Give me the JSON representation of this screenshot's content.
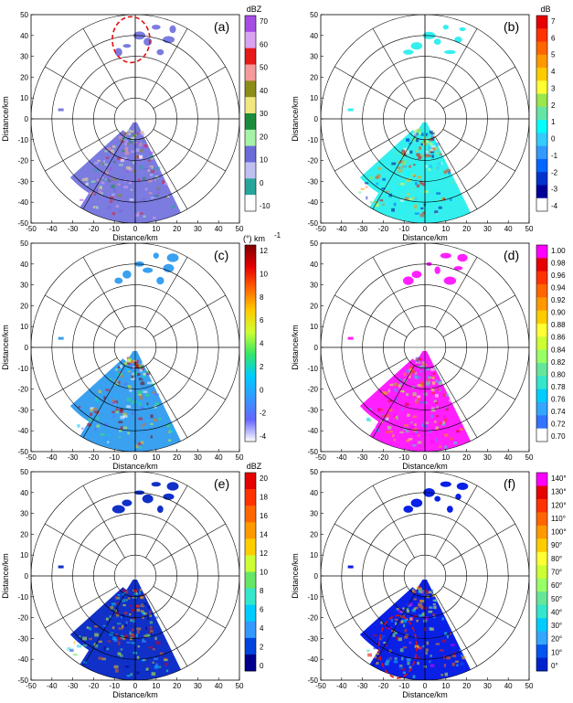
{
  "figure": {
    "background": "#ffffff",
    "grid_color": "#000000"
  },
  "chart_data": [
    {
      "panel": "(a)",
      "type": "heatmap",
      "xlabel": "Distance/km",
      "ylabel": "Distance/km",
      "xlim": [
        -50,
        50
      ],
      "ylim": [
        -50,
        50
      ],
      "xticks": [
        "-50",
        "-40",
        "-30",
        "-20",
        "-10",
        "0",
        "10",
        "20",
        "30",
        "40",
        "50"
      ],
      "yticks": [
        "50",
        "40",
        "30",
        "20",
        "10",
        "0",
        "-10",
        "-20",
        "-30",
        "-40",
        "-50"
      ],
      "range_rings_km": [
        10,
        20,
        30,
        40,
        50
      ],
      "radial_line_spacing_deg": 30,
      "colorbar": {
        "title": "dBZ",
        "ticks": [
          "70",
          "60",
          "50",
          "40",
          "30",
          "20",
          "10",
          "0",
          "-10"
        ],
        "colors": [
          "#a64de6",
          "#d9a3f2",
          "#e61a1a",
          "#f59a9a",
          "#8c8c19",
          "#f2e680",
          "#1a8c3b",
          "#a6f2a6",
          "#6b6bd9",
          "#bfbff2",
          "#26a69a",
          "#ffffff"
        ]
      },
      "main_color": "#7b7be0",
      "annotation": "red dashed ellipse"
    },
    {
      "panel": "(b)",
      "type": "heatmap",
      "xlabel": "Distance/km",
      "ylabel": "",
      "xlim": [
        -50,
        50
      ],
      "ylim": [
        -50,
        50
      ],
      "xticks": [
        "-50",
        "-40",
        "-30",
        "-20",
        "-10",
        "0",
        "10",
        "20",
        "30",
        "40",
        "50"
      ],
      "yticks": [
        "50",
        "40",
        "30",
        "20",
        "10",
        "0",
        "-10",
        "-20",
        "-30",
        "-40",
        "-50"
      ],
      "range_rings_km": [
        10,
        20,
        30,
        40,
        50
      ],
      "radial_line_spacing_deg": 30,
      "colorbar": {
        "title": "dB",
        "ticks": [
          "7",
          "6",
          "5",
          "4",
          "3",
          "2",
          "1",
          "0",
          "-1",
          "-2",
          "-3",
          "-4"
        ],
        "colors": [
          "#e60000",
          "#ff3300",
          "#ff6600",
          "#ff9900",
          "#ffcc00",
          "#ffff33",
          "#99e64d",
          "#66e6a6",
          "#00ffff",
          "#33ccff",
          "#3399ff",
          "#0066ff",
          "#0033cc",
          "#000099",
          "#ffffff"
        ]
      },
      "main_color": "#33f0ee"
    },
    {
      "panel": "(c)",
      "type": "heatmap",
      "xlabel": "Distance/km",
      "ylabel": "Distance/km",
      "xlim": [
        -50,
        50
      ],
      "ylim": [
        -50,
        50
      ],
      "xticks": [
        "-50",
        "-40",
        "-30",
        "-20",
        "-10",
        "0",
        "10",
        "20",
        "30",
        "40",
        "50"
      ],
      "yticks": [
        "50",
        "40",
        "30",
        "20",
        "10",
        "0",
        "-10",
        "-20",
        "-30",
        "-40",
        "-50"
      ],
      "range_rings_km": [
        10,
        20,
        30,
        40,
        50
      ],
      "radial_line_spacing_deg": 30,
      "colorbar": {
        "title": "(°) km",
        "title_sup": "-1",
        "ticks": [
          "12",
          "10",
          "8",
          "6",
          "4",
          "2",
          "0",
          "-2",
          "-4"
        ],
        "gradient": [
          "#800000",
          "#e60000",
          "#ff6600",
          "#ffcc00",
          "#ccff33",
          "#33e666",
          "#00ccff",
          "#3399ff",
          "#6666ff",
          "#ffffff"
        ]
      },
      "main_color": "#3aa0f0"
    },
    {
      "panel": "(d)",
      "type": "heatmap",
      "xlabel": "Distance/km",
      "ylabel": "",
      "xlim": [
        -50,
        50
      ],
      "ylim": [
        -50,
        50
      ],
      "xticks": [
        "-50",
        "-40",
        "-30",
        "-20",
        "-10",
        "0",
        "10",
        "20",
        "30",
        "40",
        "50"
      ],
      "yticks": [
        "50",
        "40",
        "30",
        "20",
        "10",
        "0",
        "-10",
        "-20",
        "-30",
        "-40",
        "-50"
      ],
      "range_rings_km": [
        10,
        20,
        30,
        40,
        50
      ],
      "radial_line_spacing_deg": 30,
      "colorbar": {
        "title": "",
        "ticks": [
          "1.00",
          "0.98",
          "0.96",
          "0.94",
          "0.92",
          "0.90",
          "0.88",
          "0.86",
          "0.84",
          "0.82",
          "0.80",
          "0.78",
          "0.76",
          "0.74",
          "0.72",
          "0.70"
        ],
        "colors": [
          "#ff00ff",
          "#e60000",
          "#ff3300",
          "#ff6600",
          "#ff9900",
          "#ffcc00",
          "#ffff33",
          "#ccff33",
          "#99ff66",
          "#66e699",
          "#33e6cc",
          "#00ccff",
          "#33a6ff",
          "#3373ff",
          "#ffffff"
        ]
      },
      "main_color": "#ff1fff"
    },
    {
      "panel": "(e)",
      "type": "heatmap",
      "xlabel": "Distance/km",
      "ylabel": "Distance/km",
      "xlim": [
        -50,
        50
      ],
      "ylim": [
        -50,
        50
      ],
      "xticks": [
        "-50",
        "-40",
        "-30",
        "-20",
        "-10",
        "0",
        "10",
        "20",
        "30",
        "40",
        "50"
      ],
      "yticks": [
        "50",
        "40",
        "30",
        "20",
        "10",
        "0",
        "-10",
        "-20",
        "-30",
        "-40",
        "-50"
      ],
      "range_rings_km": [
        10,
        20,
        30,
        40,
        50
      ],
      "radial_line_spacing_deg": 30,
      "colorbar": {
        "title": "dBZ",
        "ticks": [
          "20",
          "18",
          "16",
          "14",
          "12",
          "10",
          "8",
          "6",
          "4",
          "2",
          "0"
        ],
        "colors": [
          "#e60000",
          "#ff3300",
          "#ff6600",
          "#ff9900",
          "#ffcc00",
          "#ccff33",
          "#66e666",
          "#33e6cc",
          "#00ccff",
          "#3399ff",
          "#0044dd",
          "#00008c"
        ]
      },
      "main_color": "#1030c8"
    },
    {
      "panel": "(f)",
      "type": "heatmap",
      "xlabel": "Distance/km",
      "ylabel": "",
      "xlim": [
        -50,
        50
      ],
      "ylim": [
        -50,
        50
      ],
      "xticks": [
        "-50",
        "-40",
        "-30",
        "-20",
        "-10",
        "0",
        "10",
        "20",
        "30",
        "40",
        "50"
      ],
      "yticks": [
        "50",
        "40",
        "30",
        "20",
        "10",
        "0",
        "-10",
        "-20",
        "-30",
        "-40",
        "-50"
      ],
      "range_rings_km": [
        10,
        20,
        30,
        40,
        50
      ],
      "radial_line_spacing_deg": 30,
      "colorbar": {
        "title": "",
        "ticks": [
          "140°",
          "130°",
          "120°",
          "110°",
          "100°",
          "90°",
          "80°",
          "70°",
          "60°",
          "50°",
          "40°",
          "30°",
          "20°",
          "10°",
          "0°"
        ],
        "colors": [
          "#ff00ff",
          "#e60000",
          "#ff3300",
          "#ff6600",
          "#ff9900",
          "#ffcc00",
          "#ffff33",
          "#ccff33",
          "#99ff66",
          "#66e699",
          "#33e6cc",
          "#00ccff",
          "#33a6ff",
          "#0055ee",
          "#0022cc"
        ]
      },
      "main_color": "#0a20e6",
      "annotation": "red dashed ellipse"
    }
  ]
}
